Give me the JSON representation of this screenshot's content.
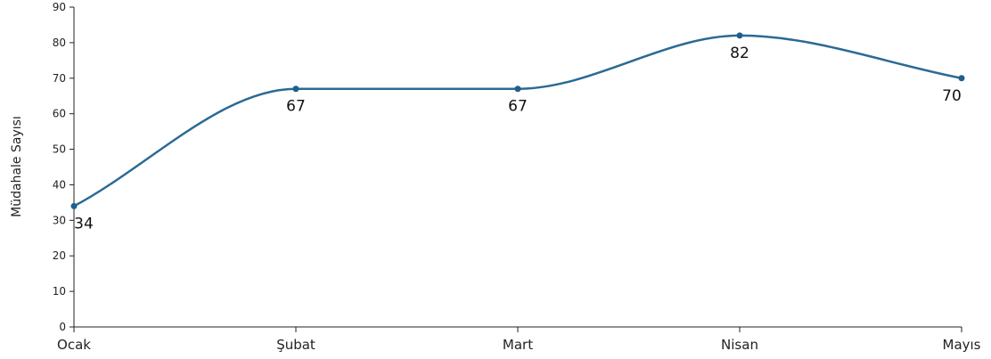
{
  "chart_data": {
    "type": "line",
    "title": "",
    "xlabel": "",
    "ylabel": "Müdahale Sayısı",
    "categories": [
      "Ocak",
      "Şubat",
      "Mart",
      "Nisan",
      "Mayıs"
    ],
    "series": [
      {
        "values": [
          34,
          67,
          67,
          82,
          70
        ]
      }
    ],
    "ylim": [
      0,
      90
    ],
    "yticks": [
      0,
      10,
      20,
      30,
      40,
      50,
      60,
      70,
      80,
      90
    ],
    "grid": false,
    "legend": "none",
    "colors": {
      "line": "#2b6a94",
      "point": "#1f5f8b"
    }
  }
}
